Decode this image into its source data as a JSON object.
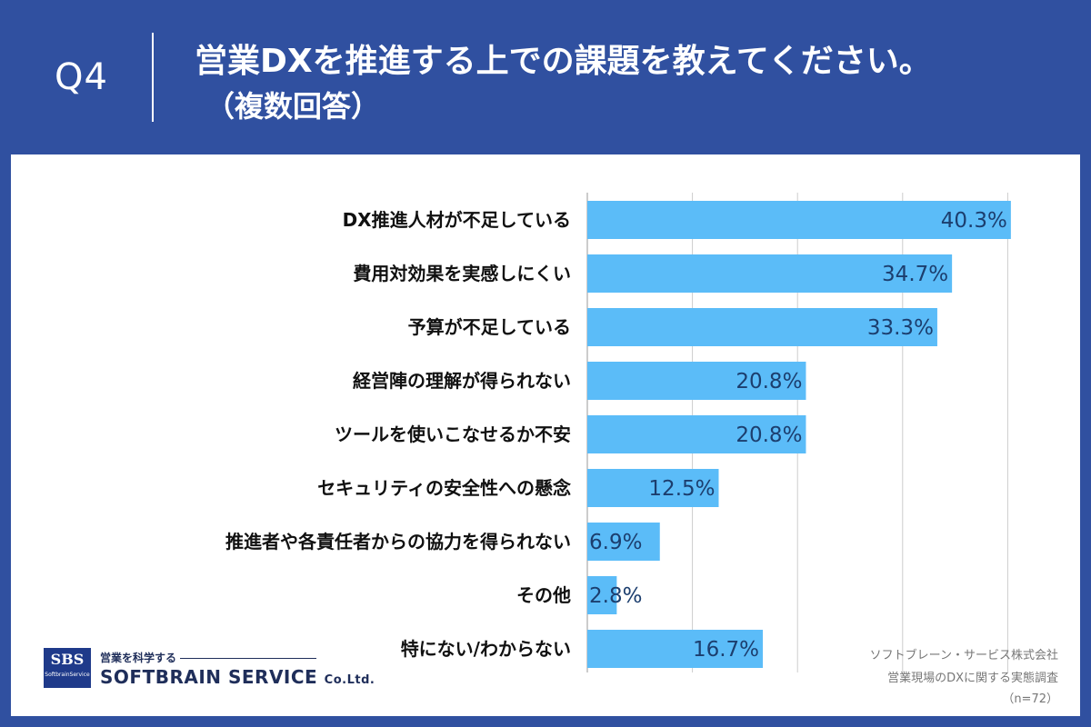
{
  "header": {
    "q_label": "Q4",
    "title_line1": "営業DXを推進する上での課題を教えてください。",
    "title_line2": "（複数回答）"
  },
  "colors": {
    "background": "#3050a0",
    "panel": "#ffffff",
    "bar": "#5bbcf8",
    "value_text": "#1c3e6e",
    "grid": "#cccccc"
  },
  "chart_data": {
    "type": "bar",
    "orientation": "horizontal",
    "categories": [
      "DX推進人材が不足している",
      "費用対効果を実感しにくい",
      "予算が不足している",
      "経営陣の理解が得られない",
      "ツールを使いこなせるか不安",
      "セキュリティの安全性への懸念",
      "推進者や各責任者からの協力を得られない",
      "その他",
      "特にない/わからない"
    ],
    "values": [
      40.3,
      34.7,
      33.3,
      20.8,
      20.8,
      12.5,
      6.9,
      2.8,
      16.7
    ],
    "value_labels": [
      "40.3%",
      "34.7%",
      "33.3%",
      "20.8%",
      "20.8%",
      "12.5%",
      "6.9%",
      "2.8%",
      "16.7%"
    ],
    "xlim": [
      0,
      50
    ],
    "grid": true
  },
  "source": {
    "company": "ソフトブレーン・サービス株式会社",
    "survey": "営業現場のDXに関する実態調査",
    "n": "（n=72）"
  },
  "logo": {
    "mark": "SBS",
    "mark_sub": "SoftbrainService",
    "tagline": "営業を科学する",
    "name": "SOFTBRAIN SERVICE",
    "suffix": "Co.Ltd."
  }
}
